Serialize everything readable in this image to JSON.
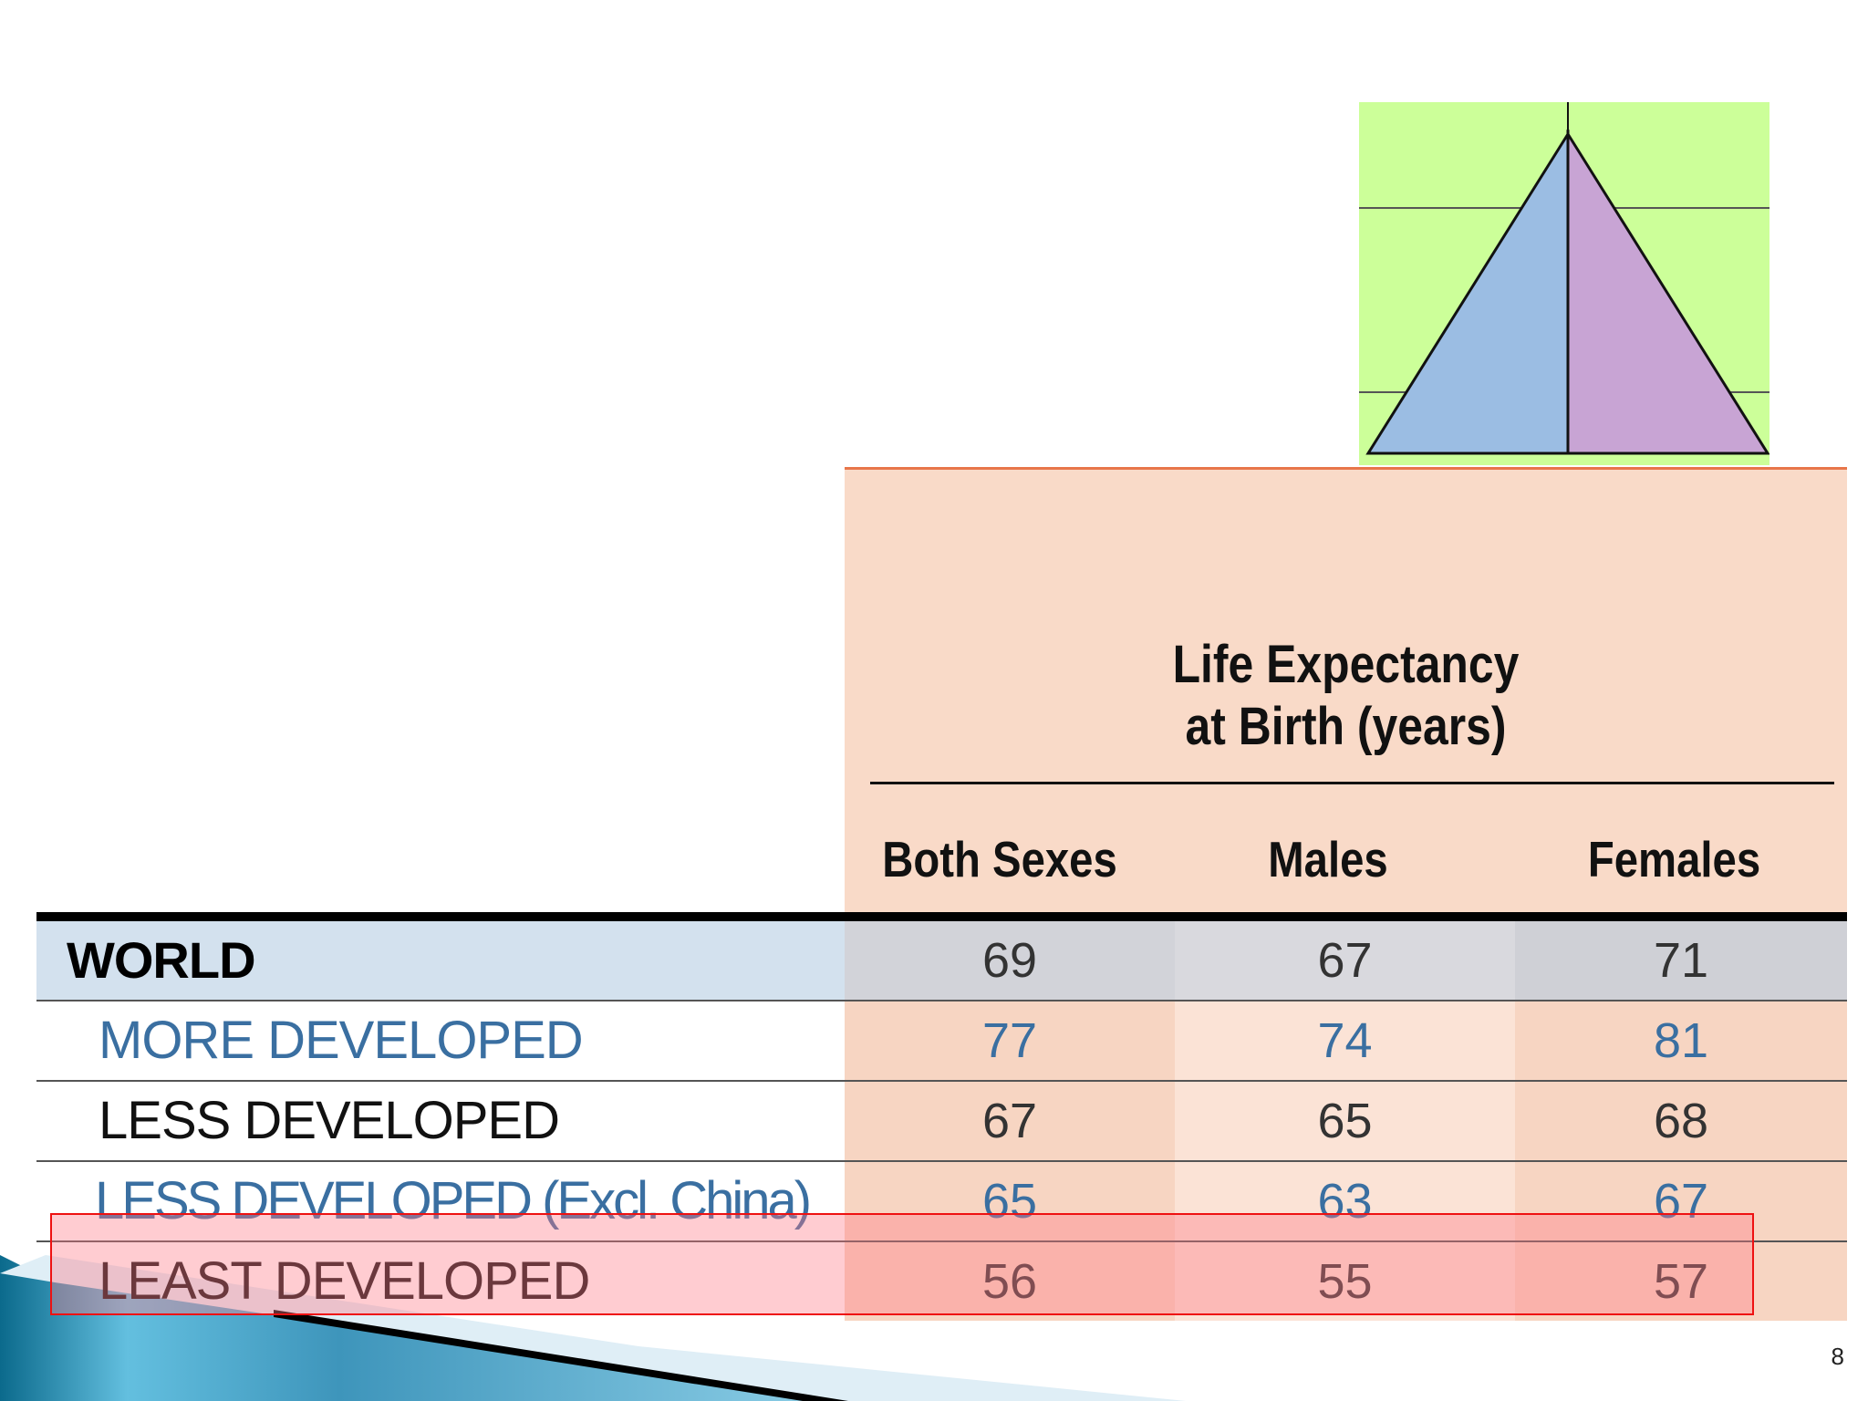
{
  "table": {
    "header_title_line1": "Life Expectancy",
    "header_title_line2": "at Birth (years)",
    "columns": [
      "Both Sexes",
      "Males",
      "Females"
    ],
    "rows": [
      {
        "label": "WORLD",
        "both": "69",
        "males": "67",
        "females": "71"
      },
      {
        "label": "MORE DEVELOPED",
        "both": "77",
        "males": "74",
        "females": "81"
      },
      {
        "label": "LESS DEVELOPED",
        "both": "67",
        "males": "65",
        "females": "68"
      },
      {
        "label": "LESS DEVELOPED (Excl. China)",
        "both": "65",
        "males": "63",
        "females": "67"
      },
      {
        "label": "LEAST DEVELOPED",
        "both": "56",
        "males": "55",
        "females": "57"
      }
    ]
  },
  "colors": {
    "highlight": "#ff7887",
    "pyramid_background": "#ccff99",
    "pyramid_male": "#9bbde3",
    "pyramid_female": "#c8a4d4",
    "header_background": "#f9dac8"
  },
  "slide": {
    "page_number": "8"
  }
}
